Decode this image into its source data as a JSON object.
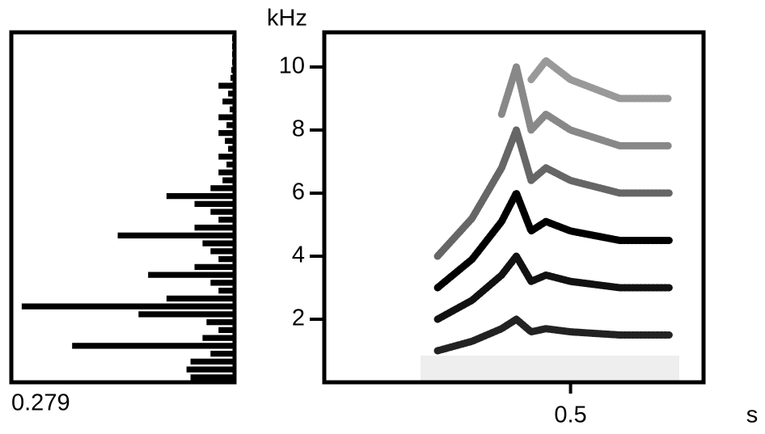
{
  "chart_data": [
    {
      "type": "hbar",
      "color": "#000000",
      "y": [
        0.125,
        0.375,
        0.625,
        0.875,
        1.125,
        1.375,
        1.625,
        1.875,
        2.125,
        2.375,
        2.625,
        2.875,
        3.125,
        3.375,
        3.625,
        3.875,
        4.125,
        4.375,
        4.625,
        4.875,
        5.125,
        5.375,
        5.625,
        5.875,
        6.125,
        6.375,
        6.625,
        6.875,
        7.125,
        7.375,
        7.625,
        7.875,
        8.125,
        8.375,
        8.625,
        8.875,
        9.125,
        9.375,
        9.625,
        9.875,
        10.125,
        10.375,
        10.625,
        10.875
      ],
      "values": [
        0.055,
        0.06,
        0.055,
        0.03,
        0.203,
        0.04,
        0.02,
        0.035,
        0.12,
        0.266,
        0.085,
        0.02,
        0.03,
        0.108,
        0.05,
        0.02,
        0.03,
        0.04,
        0.146,
        0.05,
        0.02,
        0.03,
        0.05,
        0.085,
        0.03,
        0.015,
        0.02,
        0.01,
        0.02,
        0.008,
        0.012,
        0.02,
        0.01,
        0.02,
        0.006,
        0.015,
        0.008,
        0.02,
        0.005,
        0.004,
        0.003,
        0.003,
        0.003,
        0.003
      ],
      "xlim": [
        0.279,
        0
      ],
      "xticks": [
        0.279
      ],
      "ylim": [
        0,
        11.1
      ]
    },
    {
      "type": "line",
      "ylabel": "kHz",
      "xlabel": "s",
      "x": [
        0.23,
        0.3,
        0.36,
        0.39,
        0.42,
        0.45,
        0.5,
        0.6,
        0.7
      ],
      "series": [
        {
          "color": "#222222",
          "values": [
            1.0,
            1.3,
            1.7,
            2.0,
            1.6,
            1.7,
            1.6,
            1.5,
            1.5
          ]
        },
        {
          "color": "#111111",
          "values": [
            2.0,
            2.6,
            3.4,
            4.0,
            3.2,
            3.4,
            3.2,
            3.0,
            3.0
          ]
        },
        {
          "color": "#000000",
          "values": [
            3.0,
            3.9,
            5.1,
            6.0,
            4.8,
            5.1,
            4.8,
            4.5,
            4.5
          ]
        },
        {
          "color": "#666666",
          "values": [
            4.0,
            5.2,
            6.8,
            8.0,
            6.4,
            6.8,
            6.4,
            6.0,
            6.0
          ]
        },
        {
          "color": "#888888",
          "values": [
            null,
            null,
            8.5,
            10.0,
            8.0,
            8.5,
            8.0,
            7.5,
            7.5
          ]
        },
        {
          "color": "#999999",
          "values": [
            null,
            null,
            null,
            null,
            9.6,
            10.2,
            9.6,
            9.0,
            9.0
          ]
        }
      ],
      "xlim": [
        0,
        0.77
      ],
      "xticks": [
        0.5
      ],
      "ylim": [
        0,
        11.1
      ],
      "yticks": [
        2,
        4,
        6,
        8,
        10
      ]
    }
  ]
}
